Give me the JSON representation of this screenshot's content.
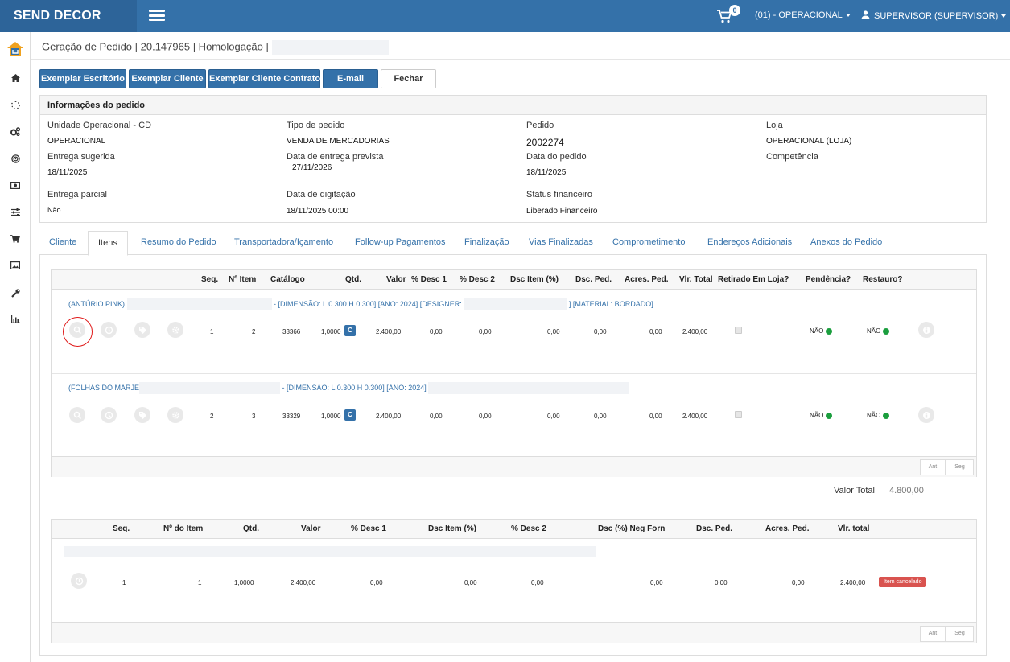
{
  "app": {
    "brand": "SEND DECOR",
    "cart_count": "0",
    "unit_selector": "(01) - OPERACIONAL",
    "user_menu": "SUPERVISOR (SUPERVISOR)"
  },
  "breadcrumb": "Geração de Pedido | 20.147965 | Homologação |",
  "actions": {
    "escritorio": "Exemplar Escritório",
    "cliente": "Exemplar Cliente",
    "contrato": "Exemplar Cliente Contrato",
    "email": "E-mail",
    "fechar": "Fechar"
  },
  "info": {
    "title": "Informações do pedido",
    "unidade_label": "Unidade Operacional - CD",
    "unidade_value": "OPERACIONAL",
    "tipo_label": "Tipo de pedido",
    "tipo_value": "VENDA DE MERCADORIAS",
    "pedido_label": "Pedido",
    "pedido_value": "2002274",
    "loja_label": "Loja",
    "loja_value": "OPERACIONAL (LOJA)",
    "entrega_sug_label": "Entrega sugerida",
    "entrega_sug_value": "18/11/2025",
    "entrega_prev_label": "Data de entrega prevista",
    "entrega_prev_value": "27/11/2026",
    "data_pedido_label": "Data do pedido",
    "data_pedido_value": "18/11/2025",
    "competencia_label": "Competência",
    "parcial_label": "Entrega parcial",
    "parcial_value": "Não",
    "digitacao_label": "Data de digitação",
    "digitacao_value": "18/11/2025 00:00",
    "status_label": "Status financeiro",
    "status_value": "Liberado Financeiro"
  },
  "tabs": [
    "Cliente",
    "Itens",
    "Resumo do Pedido",
    "Transportadora/Içamento",
    "Follow-up Pagamentos",
    "Finalização",
    "Vias Finalizadas",
    "Comprometimento",
    "Endereços Adicionais",
    "Anexos do Pedido"
  ],
  "items_table": {
    "headers": [
      "Seq.",
      "Nº Item",
      "Catálogo",
      "Qtd.",
      "Valor",
      "% Desc 1",
      "% Desc 2",
      "Dsc Item (%)",
      "Dsc. Ped.",
      "Acres. Ped.",
      "Vlr. Total",
      "Retirado Em Loja?",
      "Pendência?",
      "Restauro?"
    ],
    "rows": [
      {
        "desc_name": "(ANTÚRIO PINK)",
        "desc_attrs": "- [DIMENSÃO: L 0.300 H 0.300] [ANO: 2024] [DESIGNER:",
        "desc_tail": "] [MATERIAL: BORDADO]",
        "seq": "1",
        "item": "2",
        "catalogo": "33366",
        "qtd": "1,0000",
        "cbtn": "C",
        "valor": "2.400,00",
        "desc1": "0,00",
        "desc2": "0,00",
        "dsc_item": "0,00",
        "dsc_ped": "0,00",
        "acres": "0,00",
        "total": "2.400,00",
        "pendencia": "NÃO",
        "restauro": "NÃO"
      },
      {
        "desc_name": "(FOLHAS DO MARJE",
        "desc_attrs": "- [DIMENSÃO: L 0.300 H 0.300] [ANO: 2024]",
        "desc_tail": "",
        "seq": "2",
        "item": "3",
        "catalogo": "33329",
        "qtd": "1,0000",
        "cbtn": "C",
        "valor": "2.400,00",
        "desc1": "0,00",
        "desc2": "0,00",
        "dsc_item": "0,00",
        "dsc_ped": "0,00",
        "acres": "0,00",
        "total": "2.400,00",
        "pendencia": "NÃO",
        "restauro": "NÃO"
      }
    ],
    "pager": {
      "prev": "Ant",
      "next": "Seg"
    }
  },
  "valor_total": {
    "label": "Valor Total",
    "value": "4.800,00"
  },
  "cancel_table": {
    "headers": [
      "Seq.",
      "Nº do Item",
      "Qtd.",
      "Valor",
      "% Desc 1",
      "Dsc Item (%)",
      "% Desc 2",
      "Dsc (%) Neg Forn",
      "Dsc. Ped.",
      "Acres. Ped.",
      "Vlr. total"
    ],
    "row": {
      "seq": "1",
      "item": "1",
      "qtd": "1,0000",
      "valor": "2.400,00",
      "desc1": "0,00",
      "dsc_item": "0,00",
      "desc2": "0,00",
      "neg_forn": "0,00",
      "dsc_ped": "0,00",
      "acres": "0,00",
      "total": "2.400,00",
      "status": "Item cancelado"
    },
    "pager": {
      "prev": "Ant",
      "next": "Seg"
    }
  },
  "colors": {
    "primary": "#3471a9",
    "status_ok": "#1b9e3e",
    "cancel": "#d9534f"
  }
}
